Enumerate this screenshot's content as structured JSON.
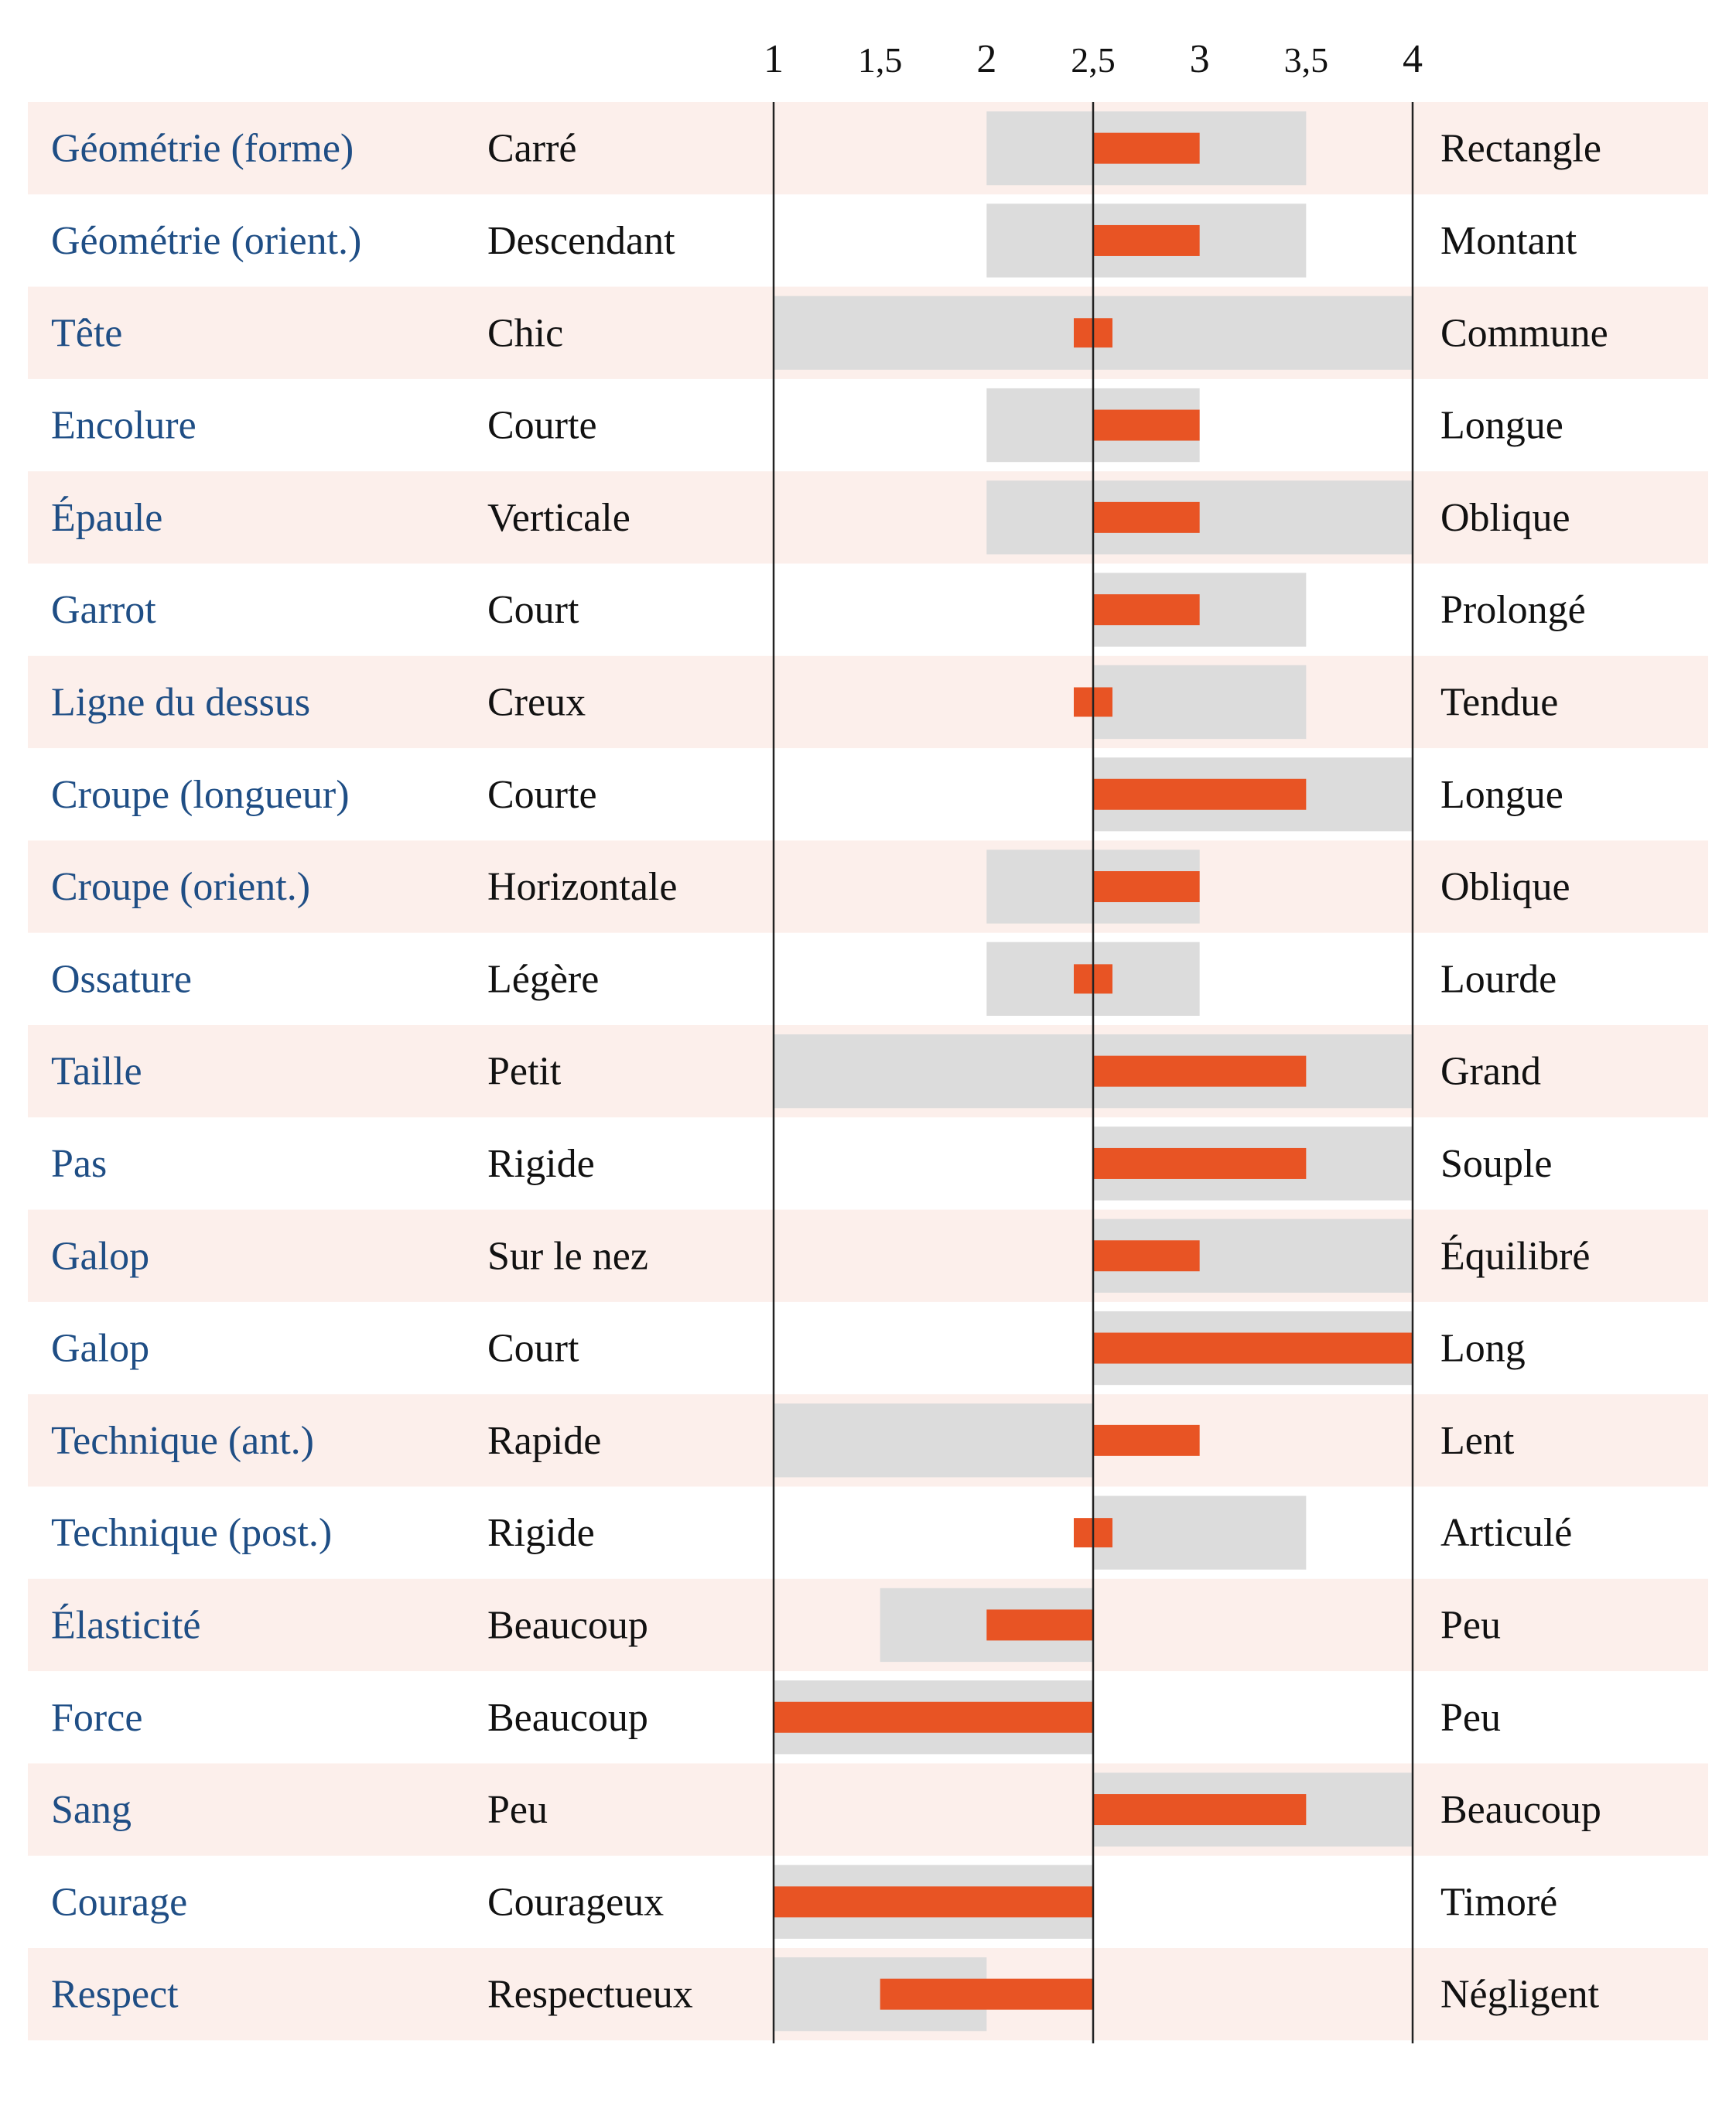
{
  "chart_data": {
    "type": "bar",
    "title": "",
    "xlabel": "",
    "ylabel": "",
    "xlim": [
      1,
      4
    ],
    "ticks": [
      {
        "value": 1,
        "label": "1"
      },
      {
        "value": 1.5,
        "label": "1,5"
      },
      {
        "value": 2,
        "label": "2"
      },
      {
        "value": 2.5,
        "label": "2,5"
      },
      {
        "value": 3,
        "label": "3"
      },
      {
        "value": 3.5,
        "label": "3,5"
      },
      {
        "value": 4,
        "label": "4"
      }
    ],
    "baseline": 2.5,
    "grid": false,
    "colors": {
      "label": "#1f4e85",
      "text": "#111111",
      "bar": "#e85424",
      "range": "#dcdcdc",
      "band": "#fcefeb",
      "axis": "#222222"
    },
    "rows": [
      {
        "trait": "Géométrie (forme)",
        "left": "Carré",
        "right": "Rectangle",
        "range": [
          2,
          3.5
        ],
        "value": 3
      },
      {
        "trait": "Géométrie (orient.)",
        "left": "Descendant",
        "right": "Montant",
        "range": [
          2,
          3.5
        ],
        "value": 3
      },
      {
        "trait": "Tête",
        "left": "Chic",
        "right": "Commune",
        "range": [
          1,
          4
        ],
        "value": 2.5
      },
      {
        "trait": "Encolure",
        "left": "Courte",
        "right": "Longue",
        "range": [
          2,
          3
        ],
        "value": 3
      },
      {
        "trait": "Épaule",
        "left": "Verticale",
        "right": "Oblique",
        "range": [
          2,
          4
        ],
        "value": 3
      },
      {
        "trait": "Garrot",
        "left": "Court",
        "right": "Prolongé",
        "range": [
          2.5,
          3.5
        ],
        "value": 3
      },
      {
        "trait": "Ligne du dessus",
        "left": "Creux",
        "right": "Tendue",
        "range": [
          2.5,
          3.5
        ],
        "value": 2.5
      },
      {
        "trait": "Croupe (longueur)",
        "left": "Courte",
        "right": "Longue",
        "range": [
          2.5,
          4
        ],
        "value": 3.5
      },
      {
        "trait": "Croupe (orient.)",
        "left": "Horizontale",
        "right": "Oblique",
        "range": [
          2,
          3
        ],
        "value": 3
      },
      {
        "trait": "Ossature",
        "left": "Légère",
        "right": "Lourde",
        "range": [
          2,
          3
        ],
        "value": 2.5
      },
      {
        "trait": "Taille",
        "left": "Petit",
        "right": "Grand",
        "range": [
          1,
          4
        ],
        "value": 3.5
      },
      {
        "trait": "Pas",
        "left": "Rigide",
        "right": "Souple",
        "range": [
          2.5,
          4
        ],
        "value": 3.5
      },
      {
        "trait": "Galop",
        "left": "Sur le nez",
        "right": "Équilibré",
        "range": [
          2.5,
          4
        ],
        "value": 3
      },
      {
        "trait": "Galop",
        "left": "Court",
        "right": "Long",
        "range": [
          2.5,
          4
        ],
        "value": 4
      },
      {
        "trait": "Technique (ant.)",
        "left": "Rapide",
        "right": "Lent",
        "range": [
          1,
          2.5
        ],
        "value": 3
      },
      {
        "trait": "Technique (post.)",
        "left": "Rigide",
        "right": "Articulé",
        "range": [
          2.5,
          3.5
        ],
        "value": 2.5
      },
      {
        "trait": "Élasticité",
        "left": "Beaucoup",
        "right": "Peu",
        "range": [
          1.5,
          2.5
        ],
        "value": 2
      },
      {
        "trait": "Force",
        "left": "Beaucoup",
        "right": "Peu",
        "range": [
          1,
          2.5
        ],
        "value": 1
      },
      {
        "trait": "Sang",
        "left": "Peu",
        "right": "Beaucoup",
        "range": [
          2.5,
          4
        ],
        "value": 3.5
      },
      {
        "trait": "Courage",
        "left": "Courageux",
        "right": "Timoré",
        "range": [
          1,
          2.5
        ],
        "value": 1
      },
      {
        "trait": "Respect",
        "left": "Respectueux",
        "right": "Négligent",
        "range": [
          1,
          2
        ],
        "value": 1.5
      }
    ]
  }
}
